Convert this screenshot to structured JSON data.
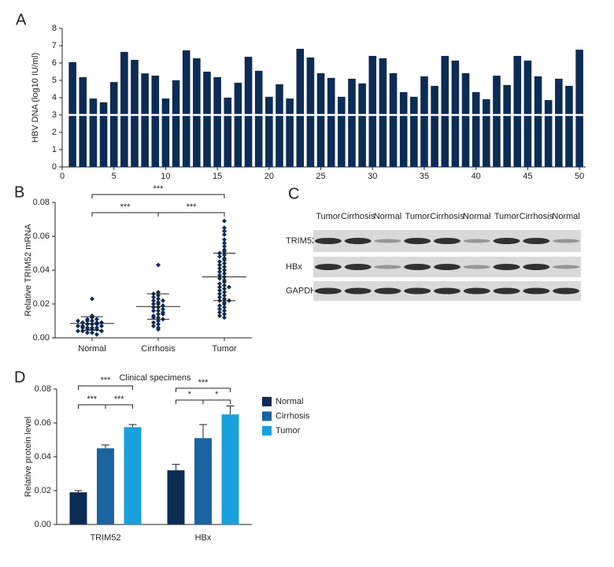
{
  "chart_data": [
    {
      "type": "bar",
      "panel_label": "A",
      "ylabel": "HBV DNA (log10 IU/ml)",
      "color": "#0d2c55",
      "x": [
        1,
        2,
        3,
        4,
        5,
        6,
        7,
        8,
        9,
        10,
        11,
        12,
        13,
        14,
        15,
        16,
        17,
        18,
        19,
        20,
        21,
        22,
        23,
        24,
        25,
        26,
        27,
        28,
        29,
        30,
        31,
        32,
        33,
        34,
        35,
        36,
        37,
        38,
        39,
        40,
        41,
        42,
        43,
        44,
        45,
        46,
        47,
        48,
        49,
        50
      ],
      "values": [
        6.05,
        5.18,
        3.95,
        3.73,
        4.9,
        6.64,
        6.18,
        5.4,
        5.27,
        3.95,
        5.0,
        6.73,
        6.27,
        5.5,
        5.18,
        4.0,
        4.86,
        6.36,
        5.55,
        4.05,
        4.77,
        3.95,
        6.82,
        6.32,
        5.41,
        5.14,
        4.05,
        5.09,
        4.82,
        6.41,
        6.27,
        5.41,
        4.32,
        4.05,
        5.23,
        4.68,
        6.41,
        6.14,
        5.41,
        4.32,
        3.91,
        5.27,
        4.73,
        6.41,
        6.14,
        5.23,
        3.86,
        5.09,
        4.68,
        6.77
      ],
      "xlim": [
        0,
        50.6
      ],
      "xticks": [
        0,
        5,
        10,
        15,
        20,
        25,
        30,
        35,
        40,
        45,
        50
      ],
      "ylim": [
        0,
        8
      ],
      "yticks": [
        0,
        1,
        2,
        3,
        4,
        5,
        6,
        7,
        8
      ],
      "hline": 3,
      "hline_color": "#ffffff"
    },
    {
      "type": "dotplot",
      "panel_label": "B",
      "ylabel": "Relative TRIM52 mRNA",
      "color": "#0d2c55",
      "categories": [
        "Normal",
        "Cirrhosis",
        "Tumor"
      ],
      "points": [
        [
          0.023,
          0.013,
          0.012,
          0.011,
          0.011,
          0.01,
          0.01,
          0.009,
          0.009,
          0.009,
          0.008,
          0.008,
          0.008,
          0.007,
          0.007,
          0.007,
          0.006,
          0.006,
          0.006,
          0.005,
          0.005,
          0.005,
          0.004,
          0.004,
          0.004,
          0.003,
          0.003,
          0.002,
          0.01,
          0.006
        ],
        [
          0.043,
          0.027,
          0.026,
          0.025,
          0.024,
          0.023,
          0.022,
          0.021,
          0.02,
          0.02,
          0.019,
          0.018,
          0.018,
          0.017,
          0.016,
          0.016,
          0.015,
          0.014,
          0.013,
          0.012,
          0.012,
          0.011,
          0.01,
          0.009,
          0.008,
          0.007,
          0.006,
          0.005,
          0.022,
          0.014
        ],
        [
          0.069,
          0.065,
          0.063,
          0.061,
          0.058,
          0.056,
          0.054,
          0.052,
          0.051,
          0.05,
          0.049,
          0.048,
          0.047,
          0.046,
          0.045,
          0.044,
          0.043,
          0.042,
          0.041,
          0.04,
          0.039,
          0.038,
          0.037,
          0.036,
          0.035,
          0.034,
          0.033,
          0.032,
          0.031,
          0.03,
          0.03,
          0.029,
          0.028,
          0.027,
          0.026,
          0.025,
          0.024,
          0.023,
          0.022,
          0.022,
          0.021,
          0.02,
          0.019,
          0.018,
          0.017,
          0.016,
          0.015,
          0.014,
          0.013,
          0.012
        ]
      ],
      "means": [
        0.0085,
        0.0185,
        0.036
      ],
      "sd": [
        0.004,
        0.0075,
        0.014
      ],
      "ylim": [
        0,
        0.08
      ],
      "yticks": [
        {
          "value": 0,
          "label": "0.00"
        },
        {
          "value": 0.02,
          "label": "0.02"
        },
        {
          "value": 0.04,
          "label": "0.04"
        },
        {
          "value": 0.06,
          "label": "0.06"
        },
        {
          "value": 0.08,
          "label": "0.08"
        }
      ],
      "significance": [
        {
          "from": 0,
          "to": 2,
          "label": "***"
        },
        {
          "from": 0,
          "to": 1,
          "label": "***"
        },
        {
          "from": 1,
          "to": 2,
          "label": "***"
        }
      ]
    },
    {
      "type": "grouped_bar",
      "panel_label": "D",
      "title": "Clinical specimens",
      "ylabel": "Relative protein level",
      "categories": [
        "TRIM52",
        "HBx"
      ],
      "series": [
        {
          "name": "Normal",
          "color": "#0d2c55",
          "values": [
            0.019,
            0.032
          ],
          "errors": [
            0.001,
            0.0035
          ]
        },
        {
          "name": "Cirrhosis",
          "color": "#1b64a0",
          "values": [
            0.045,
            0.051
          ],
          "errors": [
            0.002,
            0.008
          ]
        },
        {
          "name": "Tumor",
          "color": "#1aa0dc",
          "values": [
            0.0575,
            0.065
          ],
          "errors": [
            0.0015,
            0.005
          ]
        }
      ],
      "ylim": [
        0,
        0.08
      ],
      "yticks": [
        {
          "value": 0,
          "label": "0.00"
        },
        {
          "value": 0.02,
          "label": "0.02"
        },
        {
          "value": 0.04,
          "label": "0.04"
        },
        {
          "value": 0.06,
          "label": "0.06"
        },
        {
          "value": 0.08,
          "label": "0.08"
        }
      ],
      "legend": "right",
      "significance": [
        [
          {
            "from": 0,
            "to": 2,
            "label": "***"
          },
          {
            "from": 0,
            "to": 1,
            "label": "***"
          },
          {
            "from": 1,
            "to": 2,
            "label": "***"
          }
        ],
        [
          {
            "from": 0,
            "to": 2,
            "label": "***"
          },
          {
            "from": 0,
            "to": 1,
            "label": "*"
          },
          {
            "from": 1,
            "to": 2,
            "label": "*"
          }
        ]
      ]
    }
  ],
  "blot": {
    "panel_label": "C",
    "lanes": [
      "Tumor",
      "Cirrhosis",
      "Normal",
      "Tumor",
      "Cirrhosis",
      "Normal",
      "Tumor",
      "Cirrhosis",
      "Normal"
    ],
    "rows": [
      "TRIM52",
      "HBx",
      "GAPDH"
    ]
  }
}
